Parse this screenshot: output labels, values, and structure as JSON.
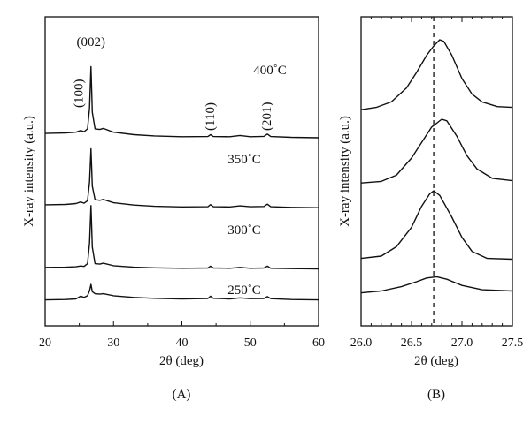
{
  "chart_data": [
    {
      "type": "line",
      "panel_label": "(A)",
      "xlabel": "2θ (deg)",
      "ylabel": "X-ray intensity (a.u.)",
      "xlim": [
        20,
        60
      ],
      "x_ticks": [
        "20",
        "30",
        "40",
        "50",
        "60"
      ],
      "yticks_labeled": false,
      "peak_labels": [
        {
          "text": "(100)",
          "x": 25.0
        },
        {
          "text": "(002)",
          "x": 26.7
        },
        {
          "text": "(110)",
          "x": 44.2
        },
        {
          "text": "(201)",
          "x": 52.5
        }
      ],
      "series": [
        {
          "name": "400˚C",
          "offset": 3,
          "points": [
            [
              20,
              0.38
            ],
            [
              23,
              0.4
            ],
            [
              24.5,
              0.44
            ],
            [
              25.2,
              0.52
            ],
            [
              25.7,
              0.46
            ],
            [
              26.2,
              0.6
            ],
            [
              26.5,
              1.6
            ],
            [
              26.7,
              3.6
            ],
            [
              26.9,
              1.4
            ],
            [
              27.3,
              0.6
            ],
            [
              28,
              0.57
            ],
            [
              28.5,
              0.62
            ],
            [
              30,
              0.44
            ],
            [
              33,
              0.32
            ],
            [
              36,
              0.26
            ],
            [
              40,
              0.22
            ],
            [
              43.8,
              0.23
            ],
            [
              44.2,
              0.32
            ],
            [
              44.6,
              0.23
            ],
            [
              47,
              0.22
            ],
            [
              48.5,
              0.28
            ],
            [
              50,
              0.22
            ],
            [
              52,
              0.24
            ],
            [
              52.5,
              0.35
            ],
            [
              53,
              0.23
            ],
            [
              56,
              0.19
            ],
            [
              60,
              0.17
            ]
          ]
        },
        {
          "name": "350˚C",
          "offset": 2,
          "points": [
            [
              20,
              0.3
            ],
            [
              23,
              0.32
            ],
            [
              24.5,
              0.36
            ],
            [
              25.2,
              0.44
            ],
            [
              25.7,
              0.38
            ],
            [
              26.2,
              0.5
            ],
            [
              26.5,
              1.4
            ],
            [
              26.7,
              3.0
            ],
            [
              26.9,
              1.2
            ],
            [
              27.3,
              0.55
            ],
            [
              28,
              0.52
            ],
            [
              28.5,
              0.56
            ],
            [
              30,
              0.4
            ],
            [
              33,
              0.29
            ],
            [
              36,
              0.23
            ],
            [
              40,
              0.2
            ],
            [
              43.8,
              0.21
            ],
            [
              44.2,
              0.31
            ],
            [
              44.6,
              0.21
            ],
            [
              47,
              0.2
            ],
            [
              48.5,
              0.25
            ],
            [
              50,
              0.21
            ],
            [
              52,
              0.22
            ],
            [
              52.5,
              0.33
            ],
            [
              53,
              0.21
            ],
            [
              56,
              0.18
            ],
            [
              60,
              0.16
            ]
          ]
        },
        {
          "name": "300˚C",
          "offset": 1,
          "points": [
            [
              20,
              0.22
            ],
            [
              23,
              0.23
            ],
            [
              24.5,
              0.25
            ],
            [
              25.2,
              0.29
            ],
            [
              25.7,
              0.27
            ],
            [
              26.2,
              0.4
            ],
            [
              26.5,
              1.4
            ],
            [
              26.7,
              3.2
            ],
            [
              26.9,
              1.2
            ],
            [
              27.3,
              0.4
            ],
            [
              28,
              0.38
            ],
            [
              28.5,
              0.42
            ],
            [
              30,
              0.3
            ],
            [
              33,
              0.23
            ],
            [
              36,
              0.2
            ],
            [
              40,
              0.18
            ],
            [
              43.8,
              0.19
            ],
            [
              44.2,
              0.28
            ],
            [
              44.6,
              0.19
            ],
            [
              47,
              0.18
            ],
            [
              48.5,
              0.22
            ],
            [
              50,
              0.18
            ],
            [
              52,
              0.19
            ],
            [
              52.5,
              0.28
            ],
            [
              53,
              0.18
            ],
            [
              56,
              0.16
            ],
            [
              60,
              0.15
            ]
          ]
        },
        {
          "name": "250˚C",
          "offset": 0,
          "points": [
            [
              20,
              0.1
            ],
            [
              23,
              0.12
            ],
            [
              24.5,
              0.15
            ],
            [
              25.2,
              0.28
            ],
            [
              25.7,
              0.22
            ],
            [
              26.2,
              0.3
            ],
            [
              26.5,
              0.55
            ],
            [
              26.7,
              0.85
            ],
            [
              26.9,
              0.5
            ],
            [
              27.3,
              0.4
            ],
            [
              28,
              0.38
            ],
            [
              28.5,
              0.4
            ],
            [
              30,
              0.3
            ],
            [
              33,
              0.22
            ],
            [
              36,
              0.18
            ],
            [
              40,
              0.15
            ],
            [
              43.8,
              0.17
            ],
            [
              44.2,
              0.28
            ],
            [
              44.6,
              0.18
            ],
            [
              47,
              0.15
            ],
            [
              48.5,
              0.2
            ],
            [
              50,
              0.16
            ],
            [
              52,
              0.17
            ],
            [
              52.5,
              0.26
            ],
            [
              53,
              0.16
            ],
            [
              56,
              0.12
            ],
            [
              60,
              0.1
            ]
          ]
        }
      ]
    },
    {
      "type": "line",
      "panel_label": "(B)",
      "xlabel": "2θ (deg)",
      "ylabel": "X-ray intensity (a.u.)",
      "xlim": [
        26.0,
        27.5
      ],
      "x_ticks": [
        "26.0",
        "26.5",
        "27.0",
        "27.5"
      ],
      "yticks_labeled": false,
      "reference_line_x": 26.72,
      "series": [
        {
          "offset": 3,
          "points": [
            [
              26.0,
              0.1
            ],
            [
              26.15,
              0.13
            ],
            [
              26.3,
              0.2
            ],
            [
              26.45,
              0.38
            ],
            [
              26.55,
              0.58
            ],
            [
              26.65,
              0.8
            ],
            [
              26.72,
              0.92
            ],
            [
              26.78,
              1.0
            ],
            [
              26.82,
              0.98
            ],
            [
              26.9,
              0.8
            ],
            [
              27.0,
              0.5
            ],
            [
              27.1,
              0.3
            ],
            [
              27.2,
              0.2
            ],
            [
              27.35,
              0.14
            ],
            [
              27.5,
              0.13
            ]
          ]
        },
        {
          "offset": 2,
          "points": [
            [
              26.0,
              0.1
            ],
            [
              26.2,
              0.12
            ],
            [
              26.35,
              0.2
            ],
            [
              26.5,
              0.42
            ],
            [
              26.6,
              0.62
            ],
            [
              26.7,
              0.82
            ],
            [
              26.8,
              0.92
            ],
            [
              26.85,
              0.9
            ],
            [
              26.95,
              0.7
            ],
            [
              27.05,
              0.45
            ],
            [
              27.15,
              0.28
            ],
            [
              27.3,
              0.16
            ],
            [
              27.5,
              0.13
            ]
          ]
        },
        {
          "offset": 1,
          "points": [
            [
              26.0,
              0.05
            ],
            [
              26.2,
              0.08
            ],
            [
              26.35,
              0.2
            ],
            [
              26.5,
              0.45
            ],
            [
              26.6,
              0.72
            ],
            [
              26.68,
              0.88
            ],
            [
              26.72,
              0.92
            ],
            [
              26.78,
              0.86
            ],
            [
              26.9,
              0.58
            ],
            [
              27.0,
              0.32
            ],
            [
              27.1,
              0.14
            ],
            [
              27.25,
              0.05
            ],
            [
              27.5,
              0.04
            ]
          ]
        },
        {
          "offset": 0,
          "points": [
            [
              26.0,
              0.02
            ],
            [
              26.2,
              0.05
            ],
            [
              26.4,
              0.12
            ],
            [
              26.55,
              0.2
            ],
            [
              26.65,
              0.26
            ],
            [
              26.75,
              0.28
            ],
            [
              26.85,
              0.24
            ],
            [
              27.0,
              0.14
            ],
            [
              27.2,
              0.07
            ],
            [
              27.5,
              0.05
            ]
          ]
        }
      ]
    }
  ]
}
